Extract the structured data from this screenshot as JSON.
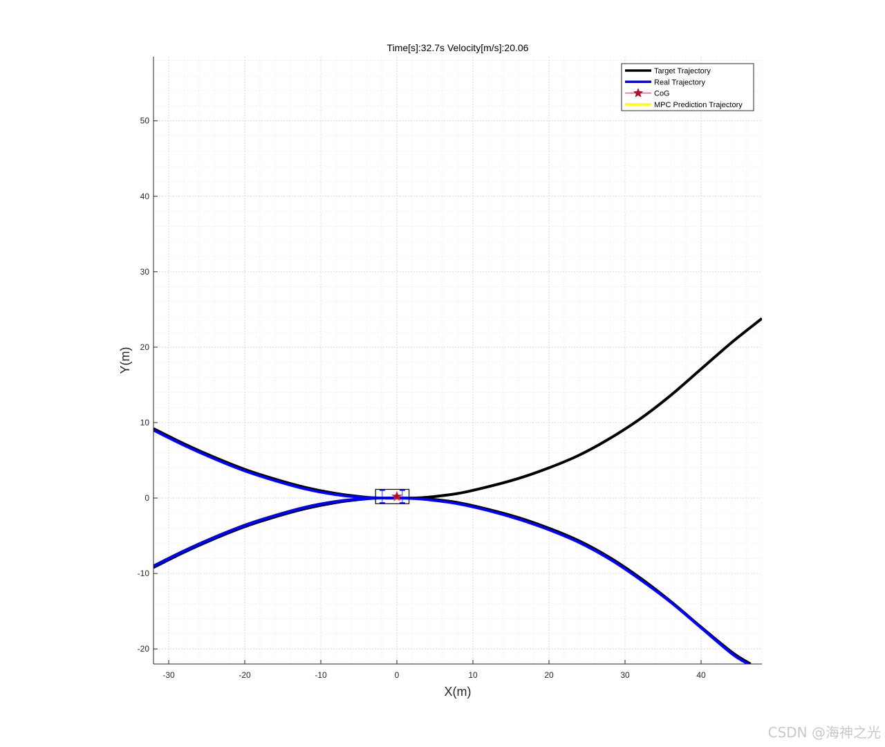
{
  "chart_data": {
    "type": "line",
    "title": "Time[s]:32.7s Velocity[m/s]:20.06",
    "xlabel": "X(m)",
    "ylabel": "Y(m)",
    "xlim": [
      -32,
      48
    ],
    "ylim": [
      -22,
      58.5
    ],
    "xticks": [
      -30,
      -20,
      -10,
      0,
      10,
      20,
      30,
      40
    ],
    "yticks": [
      -20,
      -10,
      0,
      10,
      20,
      30,
      40,
      50
    ],
    "grid": true,
    "minor_grid": true,
    "legend_position": "top-right",
    "series": [
      {
        "name": "Target Trajectory",
        "color": "#000000",
        "segments": [
          {
            "x": [
              -32,
              -28,
              -24,
              -20,
              -16,
              -12,
              -8,
              -4,
              -2,
              0,
              2,
              4,
              8,
              12,
              16,
              20,
              24,
              28,
              32,
              36,
              40,
              44,
              48
            ],
            "y": [
              9.2,
              7.2,
              5.4,
              3.8,
              2.5,
              1.4,
              0.6,
              0.1,
              0.0,
              0.0,
              0.0,
              0.1,
              0.6,
              1.5,
              2.6,
              4.0,
              5.7,
              7.9,
              10.5,
              13.6,
              17.1,
              20.6,
              23.8
            ]
          },
          {
            "x": [
              -32,
              -28,
              -24,
              -20,
              -16,
              -12,
              -8,
              -4,
              -2,
              0,
              2,
              4,
              8,
              12,
              16,
              20,
              24,
              28,
              32,
              36,
              40,
              44,
              46.5
            ],
            "y": [
              -9.2,
              -7.2,
              -5.4,
              -3.8,
              -2.5,
              -1.4,
              -0.6,
              -0.1,
              0.0,
              0.0,
              0.0,
              -0.1,
              -0.6,
              -1.5,
              -2.6,
              -4.0,
              -5.7,
              -7.9,
              -10.6,
              -13.7,
              -17.1,
              -20.4,
              -22.0
            ]
          }
        ]
      },
      {
        "name": "Real Trajectory",
        "color": "#0000ff",
        "segments": [
          {
            "x": [
              -32,
              -28,
              -24,
              -20,
              -16,
              -12,
              -8,
              -4,
              -2,
              0,
              1.5
            ],
            "y": [
              9.0,
              7.0,
              5.2,
              3.6,
              2.3,
              1.2,
              0.45,
              0.05,
              0.0,
              0.0,
              0.0
            ]
          },
          {
            "x": [
              -32,
              -28,
              -24,
              -20,
              -16,
              -12,
              -8,
              -4,
              -2,
              0,
              2,
              4,
              8,
              12,
              16,
              20,
              24,
              28,
              32,
              36,
              40,
              44,
              46.2
            ],
            "y": [
              -9.0,
              -7.0,
              -5.2,
              -3.6,
              -2.3,
              -1.2,
              -0.45,
              -0.05,
              0.0,
              0.0,
              -0.05,
              -0.2,
              -0.75,
              -1.65,
              -2.8,
              -4.2,
              -5.9,
              -8.1,
              -10.8,
              -13.8,
              -17.2,
              -20.6,
              -22.0
            ]
          }
        ]
      },
      {
        "name": "CoG",
        "color": "#a2142f",
        "marker": "star",
        "x": [
          0.0
        ],
        "y": [
          0.2
        ]
      },
      {
        "name": "MPC Prediction Trajectory",
        "color": "#ffff00",
        "x": [],
        "y": []
      }
    ],
    "vehicle": {
      "center": [
        -0.6,
        0.2
      ],
      "length": 4.4,
      "width": 1.9,
      "color": "#000000",
      "wheel_color": "#0000ff"
    }
  },
  "watermark": "CSDN @海神之光"
}
